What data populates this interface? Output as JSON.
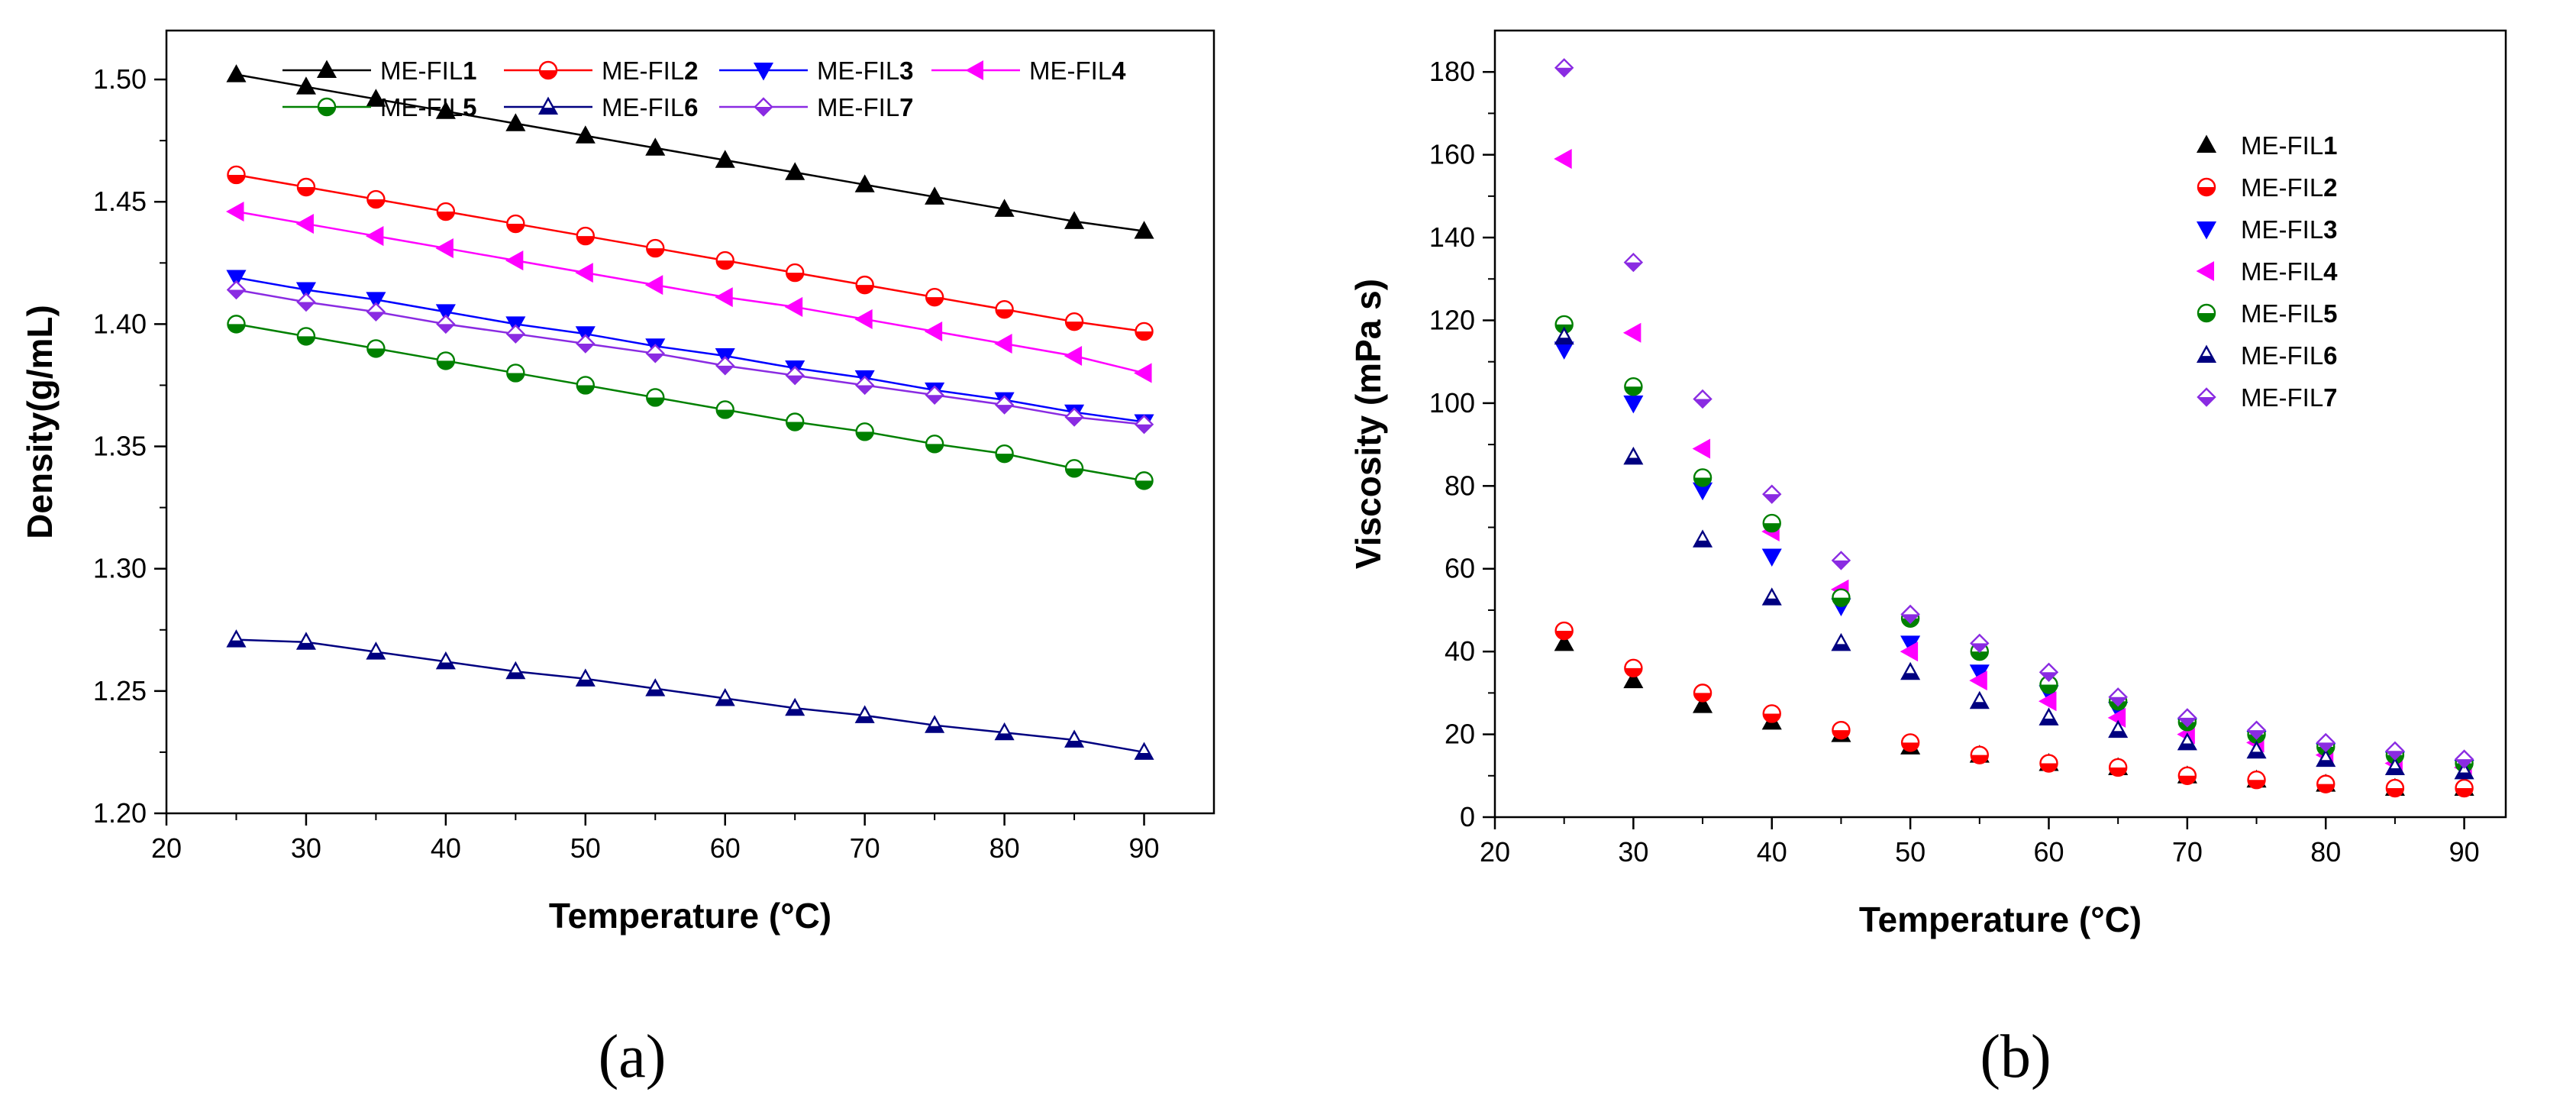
{
  "panels": {
    "a": {
      "label": "(a)"
    },
    "b": {
      "label": "(b)"
    }
  },
  "series_colors": {
    "ME-FIL1": "#000000",
    "ME-FIL2": "#ff0000",
    "ME-FIL3": "#0000ff",
    "ME-FIL4": "#ff00ff",
    "ME-FIL5": "#008000",
    "ME-FIL6": "#000080",
    "ME-FIL7": "#8a2be2"
  },
  "series_markers": {
    "ME-FIL1": "triangle-up-filled",
    "ME-FIL2": "circle-half",
    "ME-FIL3": "triangle-down-filled",
    "ME-FIL4": "triangle-left-filled",
    "ME-FIL5": "circle-half",
    "ME-FIL6": "triangle-up-half",
    "ME-FIL7": "diamond-half"
  },
  "chart_data": [
    {
      "id": "density",
      "type": "line",
      "title": "",
      "xlabel": "Temperature (°C)",
      "ylabel": "Density(g/mL)",
      "xlim": [
        20,
        95
      ],
      "ylim": [
        1.2,
        1.52
      ],
      "xticks": [
        20,
        30,
        40,
        50,
        60,
        70,
        80,
        90
      ],
      "yticks": [
        1.2,
        1.25,
        1.3,
        1.35,
        1.4,
        1.45,
        1.5
      ],
      "ytick_labels": [
        "1.20",
        "1.25",
        "1.30",
        "1.35",
        "1.40",
        "1.45",
        "1.50"
      ],
      "grid": false,
      "legend_position": "top",
      "x": [
        25,
        30,
        35,
        40,
        45,
        50,
        55,
        60,
        65,
        70,
        75,
        80,
        85,
        90
      ],
      "series": [
        {
          "name": "ME-FIL1",
          "base": "ME-FIL",
          "num": "1",
          "values": [
            1.502,
            1.497,
            1.492,
            1.487,
            1.482,
            1.477,
            1.472,
            1.467,
            1.462,
            1.457,
            1.452,
            1.447,
            1.442,
            1.438
          ]
        },
        {
          "name": "ME-FIL2",
          "base": "ME-FIL",
          "num": "2",
          "values": [
            1.461,
            1.456,
            1.451,
            1.446,
            1.441,
            1.436,
            1.431,
            1.426,
            1.421,
            1.416,
            1.411,
            1.406,
            1.401,
            1.397
          ]
        },
        {
          "name": "ME-FIL3",
          "base": "ME-FIL",
          "num": "3",
          "values": [
            1.419,
            1.414,
            1.41,
            1.405,
            1.4,
            1.396,
            1.391,
            1.387,
            1.382,
            1.378,
            1.373,
            1.369,
            1.364,
            1.36
          ]
        },
        {
          "name": "ME-FIL4",
          "base": "ME-FIL",
          "num": "4",
          "values": [
            1.446,
            1.441,
            1.436,
            1.431,
            1.426,
            1.421,
            1.416,
            1.411,
            1.407,
            1.402,
            1.397,
            1.392,
            1.387,
            1.38
          ]
        },
        {
          "name": "ME-FIL5",
          "base": "ME-FIL",
          "num": "5",
          "values": [
            1.4,
            1.395,
            1.39,
            1.385,
            1.38,
            1.375,
            1.37,
            1.365,
            1.36,
            1.356,
            1.351,
            1.347,
            1.341,
            1.336
          ]
        },
        {
          "name": "ME-FIL6",
          "base": "ME-FIL",
          "num": "6",
          "values": [
            1.271,
            1.27,
            1.266,
            1.262,
            1.258,
            1.255,
            1.251,
            1.247,
            1.243,
            1.24,
            1.236,
            1.233,
            1.23,
            1.225
          ]
        },
        {
          "name": "ME-FIL7",
          "base": "ME-FIL",
          "num": "7",
          "values": [
            1.414,
            1.409,
            1.405,
            1.4,
            1.396,
            1.392,
            1.388,
            1.383,
            1.379,
            1.375,
            1.371,
            1.367,
            1.362,
            1.359
          ]
        }
      ]
    },
    {
      "id": "viscosity",
      "type": "scatter",
      "title": "",
      "xlabel": "Temperature (°C)",
      "ylabel": "Viscosity (mPa s)",
      "xlim": [
        20,
        93
      ],
      "ylim": [
        0,
        190
      ],
      "xticks": [
        20,
        30,
        40,
        50,
        60,
        70,
        80,
        90
      ],
      "yticks": [
        0,
        20,
        40,
        60,
        80,
        100,
        120,
        140,
        160,
        180
      ],
      "ytick_labels": [
        "0",
        "20",
        "40",
        "60",
        "80",
        "100",
        "120",
        "140",
        "160",
        "180"
      ],
      "grid": false,
      "legend_position": "right",
      "x": [
        25,
        30,
        35,
        40,
        45,
        50,
        55,
        60,
        65,
        70,
        75,
        80,
        85,
        90
      ],
      "series": [
        {
          "name": "ME-FIL1",
          "base": "ME-FIL",
          "num": "1",
          "values": [
            42,
            33,
            27,
            23,
            20,
            17,
            15,
            13,
            12,
            10,
            9,
            8,
            7,
            7
          ]
        },
        {
          "name": "ME-FIL2",
          "base": "ME-FIL",
          "num": "2",
          "values": [
            45,
            36,
            30,
            25,
            21,
            18,
            15,
            13,
            12,
            10,
            9,
            8,
            7,
            7
          ]
        },
        {
          "name": "ME-FIL3",
          "base": "ME-FIL",
          "num": "3",
          "values": [
            113,
            100,
            79,
            63,
            51,
            42,
            35,
            30,
            26,
            22,
            19,
            16,
            14,
            12
          ]
        },
        {
          "name": "ME-FIL4",
          "base": "ME-FIL",
          "num": "4",
          "values": [
            159,
            117,
            89,
            69,
            55,
            40,
            33,
            28,
            24,
            20,
            18,
            15,
            13,
            12
          ]
        },
        {
          "name": "ME-FIL5",
          "base": "ME-FIL",
          "num": "5",
          "values": [
            119,
            104,
            82,
            71,
            53,
            48,
            40,
            32,
            28,
            23,
            20,
            17,
            15,
            13
          ]
        },
        {
          "name": "ME-FIL6",
          "base": "ME-FIL",
          "num": "6",
          "values": [
            116,
            87,
            67,
            53,
            42,
            35,
            28,
            24,
            21,
            18,
            16,
            14,
            12,
            11
          ]
        },
        {
          "name": "ME-FIL7",
          "base": "ME-FIL",
          "num": "7",
          "values": [
            181,
            134,
            101,
            78,
            62,
            49,
            42,
            35,
            29,
            24,
            21,
            18,
            16,
            14
          ]
        }
      ]
    }
  ]
}
